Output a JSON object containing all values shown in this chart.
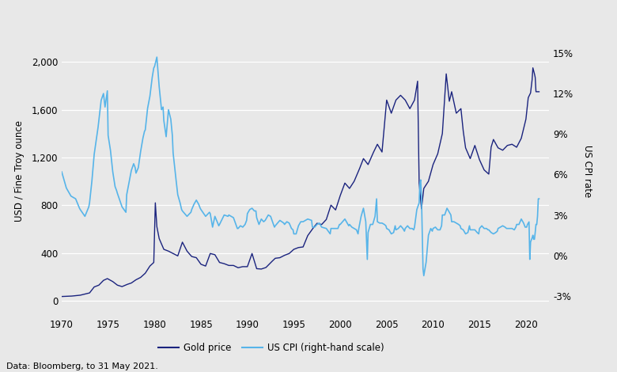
{
  "ylabel_left": "USD / Fine Troy ounce",
  "ylabel_right": "US CPI rate",
  "caption": "Data: Bloomberg, to 31 May 2021.",
  "gold_color": "#1a237e",
  "cpi_color": "#56b4e9",
  "background_color": "#e8e8e8",
  "plot_bg_color": "#e8e8e8",
  "ylim_left": [
    -130,
    2300
  ],
  "ylim_right": [
    -4.5,
    17.0
  ],
  "xlim": [
    1970,
    2022.5
  ],
  "yticks_left": [
    0,
    400,
    800,
    1200,
    1600,
    2000
  ],
  "yticks_right_vals": [
    -3,
    0,
    3,
    6,
    9,
    12,
    15
  ],
  "yticks_right_labels": [
    "-3%",
    "0%",
    "3%",
    "6%",
    "9%",
    "12%",
    "15%"
  ],
  "xticks": [
    1970,
    1975,
    1980,
    1985,
    1990,
    1995,
    2000,
    2005,
    2010,
    2015,
    2020
  ],
  "legend_labels": [
    "Gold price",
    "US CPI (right-hand scale)"
  ],
  "gold_linewidth": 1.0,
  "cpi_linewidth": 1.2
}
